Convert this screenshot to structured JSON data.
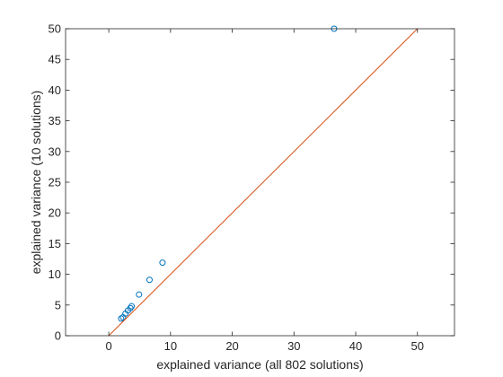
{
  "chart_data": {
    "type": "scatter",
    "title": "",
    "xlabel": "explained variance (all 802 solutions)",
    "ylabel": "explained variance (10 solutions)",
    "xlim": [
      -7,
      56
    ],
    "ylim": [
      0,
      50
    ],
    "xticks": [
      0,
      10,
      20,
      30,
      40,
      50
    ],
    "yticks": [
      0,
      5,
      10,
      15,
      20,
      25,
      30,
      35,
      40,
      45,
      50
    ],
    "grid": false,
    "series": [
      {
        "type": "scatter",
        "marker": "circle-open",
        "color": "#0072BD",
        "x": [
          2.0,
          2.3,
          2.7,
          3.1,
          3.5,
          3.7,
          4.9,
          6.6,
          8.7,
          36.5
        ],
        "y": [
          2.8,
          3.0,
          3.6,
          4.1,
          4.5,
          4.8,
          6.7,
          9.1,
          11.9,
          50.0
        ]
      },
      {
        "type": "line",
        "color": "#D95319",
        "x": [
          0,
          50
        ],
        "y": [
          0,
          50
        ]
      }
    ]
  }
}
